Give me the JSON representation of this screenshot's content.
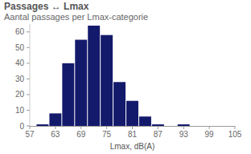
{
  "chart_data": {
    "type": "histogram",
    "title": "Passages ↔ Lmax",
    "subtitle": "Aantal passages per Lmax-categorie",
    "x_label": "Lmax, dB(A)",
    "bins": [
      58.5,
      61.5,
      64.5,
      67.5,
      70.5,
      73.5,
      76.5,
      79.5,
      82.5,
      85.5,
      88.5,
      91.5,
      94.5,
      97.5
    ],
    "values": [
      1,
      8,
      40,
      55,
      64,
      58,
      28,
      16,
      6,
      1,
      0,
      1,
      0
    ],
    "color": "#141a6b",
    "xlim": [
      57,
      105
    ],
    "xticks": [
      57,
      63,
      69,
      75,
      81,
      87,
      93,
      99,
      105
    ],
    "ylim": [
      0,
      65
    ],
    "yticks": [
      0,
      10,
      20,
      30,
      40,
      50,
      60
    ]
  }
}
